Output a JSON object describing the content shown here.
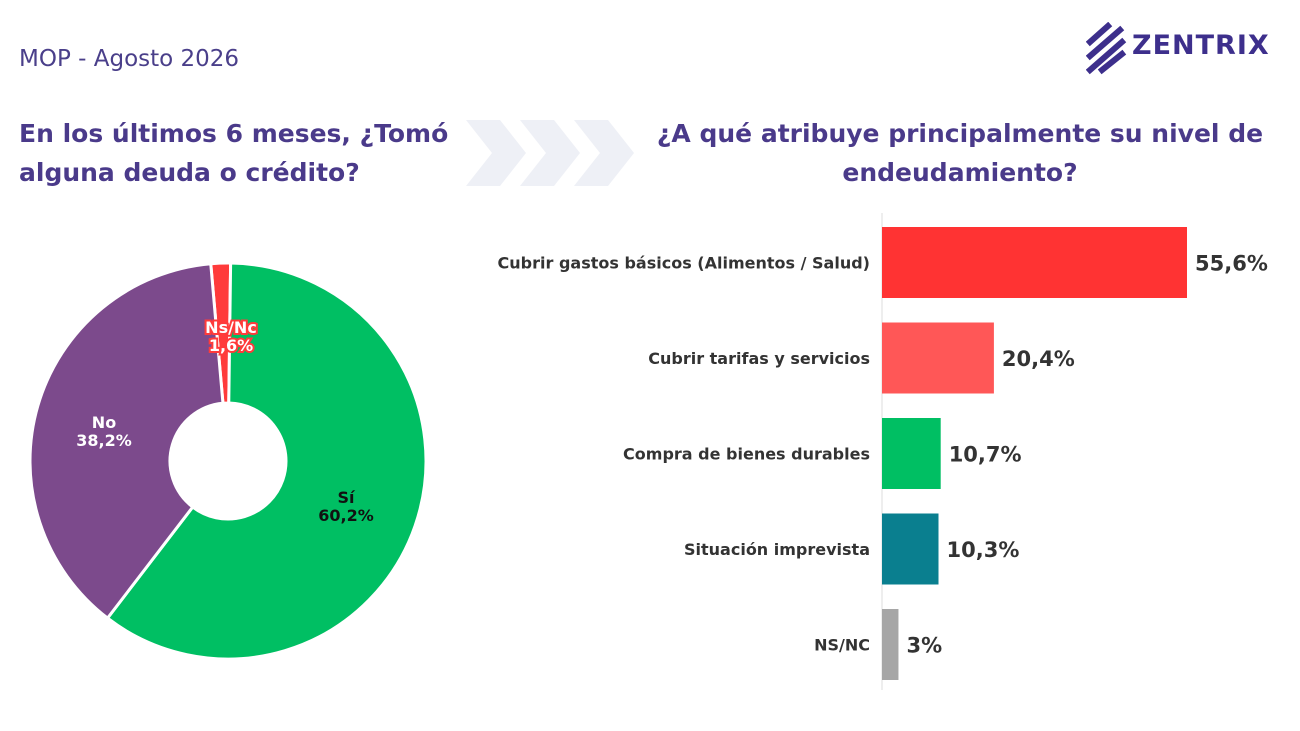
{
  "header": {
    "subtitle": "MOP - Agosto 2026"
  },
  "logo": {
    "text": "ZENTRIX",
    "icon": "zentrix-logo-icon",
    "color": "#3d2f8c"
  },
  "chart_data": [
    {
      "type": "pie",
      "donut": true,
      "title": "En los últimos 6 meses, ¿Tomó alguna deuda o crédito?",
      "categories": [
        "Ns/Nc",
        "Sí",
        "No"
      ],
      "values": [
        1.6,
        60.2,
        38.2
      ],
      "labels": [
        "1,6%",
        "60,2%",
        "38,2%"
      ],
      "colors": [
        "#ff3b3b",
        "#00bf63",
        "#7c4a8c"
      ]
    },
    {
      "type": "bar",
      "orientation": "horizontal",
      "title": "¿A qué atribuye principalmente su nivel de endeudamiento?",
      "categories": [
        "Cubrir gastos básicos (Alimentos / Salud)",
        "Cubrir tarifas y servicios",
        "Compra de bienes durables",
        "Situación imprevista",
        "NS/NC"
      ],
      "values": [
        55.6,
        20.4,
        10.7,
        10.3,
        3
      ],
      "labels": [
        "55,6%",
        "20,4%",
        "10,7%",
        "10,3%",
        "3%"
      ],
      "colors": [
        "#ff3333",
        "#ff5757",
        "#00bf63",
        "#0a7f8f",
        "#a6a6a6"
      ]
    }
  ]
}
